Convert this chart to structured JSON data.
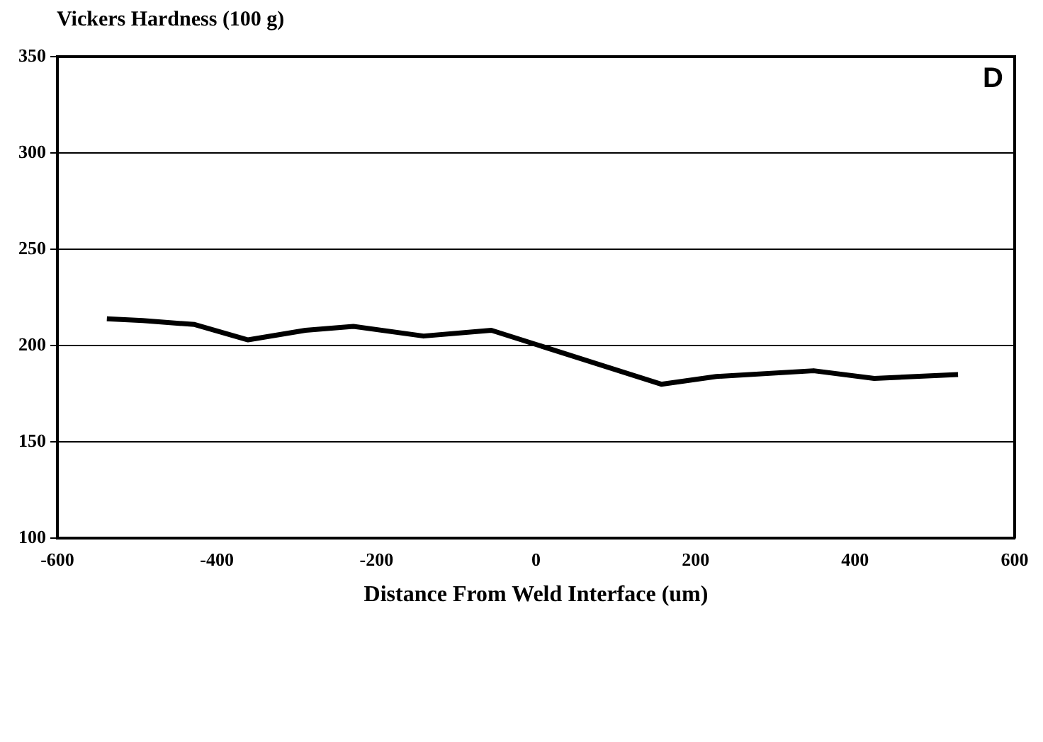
{
  "chart_data": {
    "type": "line",
    "ylabel": "Vickers Hardness (100 g)",
    "xlabel": "Distance From Weld Interface (um)",
    "annotations": [
      "D"
    ],
    "x": [
      -538,
      -493,
      -428,
      -361,
      -289,
      -229,
      -141,
      -56,
      157,
      226,
      348,
      424,
      529
    ],
    "series": [
      {
        "color": "#000000",
        "values": [
          214,
          213,
          211,
          203,
          208,
          210,
          205,
          208,
          180,
          184,
          187,
          183,
          185
        ]
      }
    ],
    "xlim": [
      -600,
      600
    ],
    "xticks": [
      -600,
      -400,
      -200,
      0,
      200,
      400,
      600
    ],
    "ylim": [
      100,
      350
    ],
    "yticks": [
      100,
      150,
      200,
      250,
      300,
      350
    ],
    "grid": "y",
    "marker": "none",
    "line_style": "solid",
    "legend": false
  }
}
